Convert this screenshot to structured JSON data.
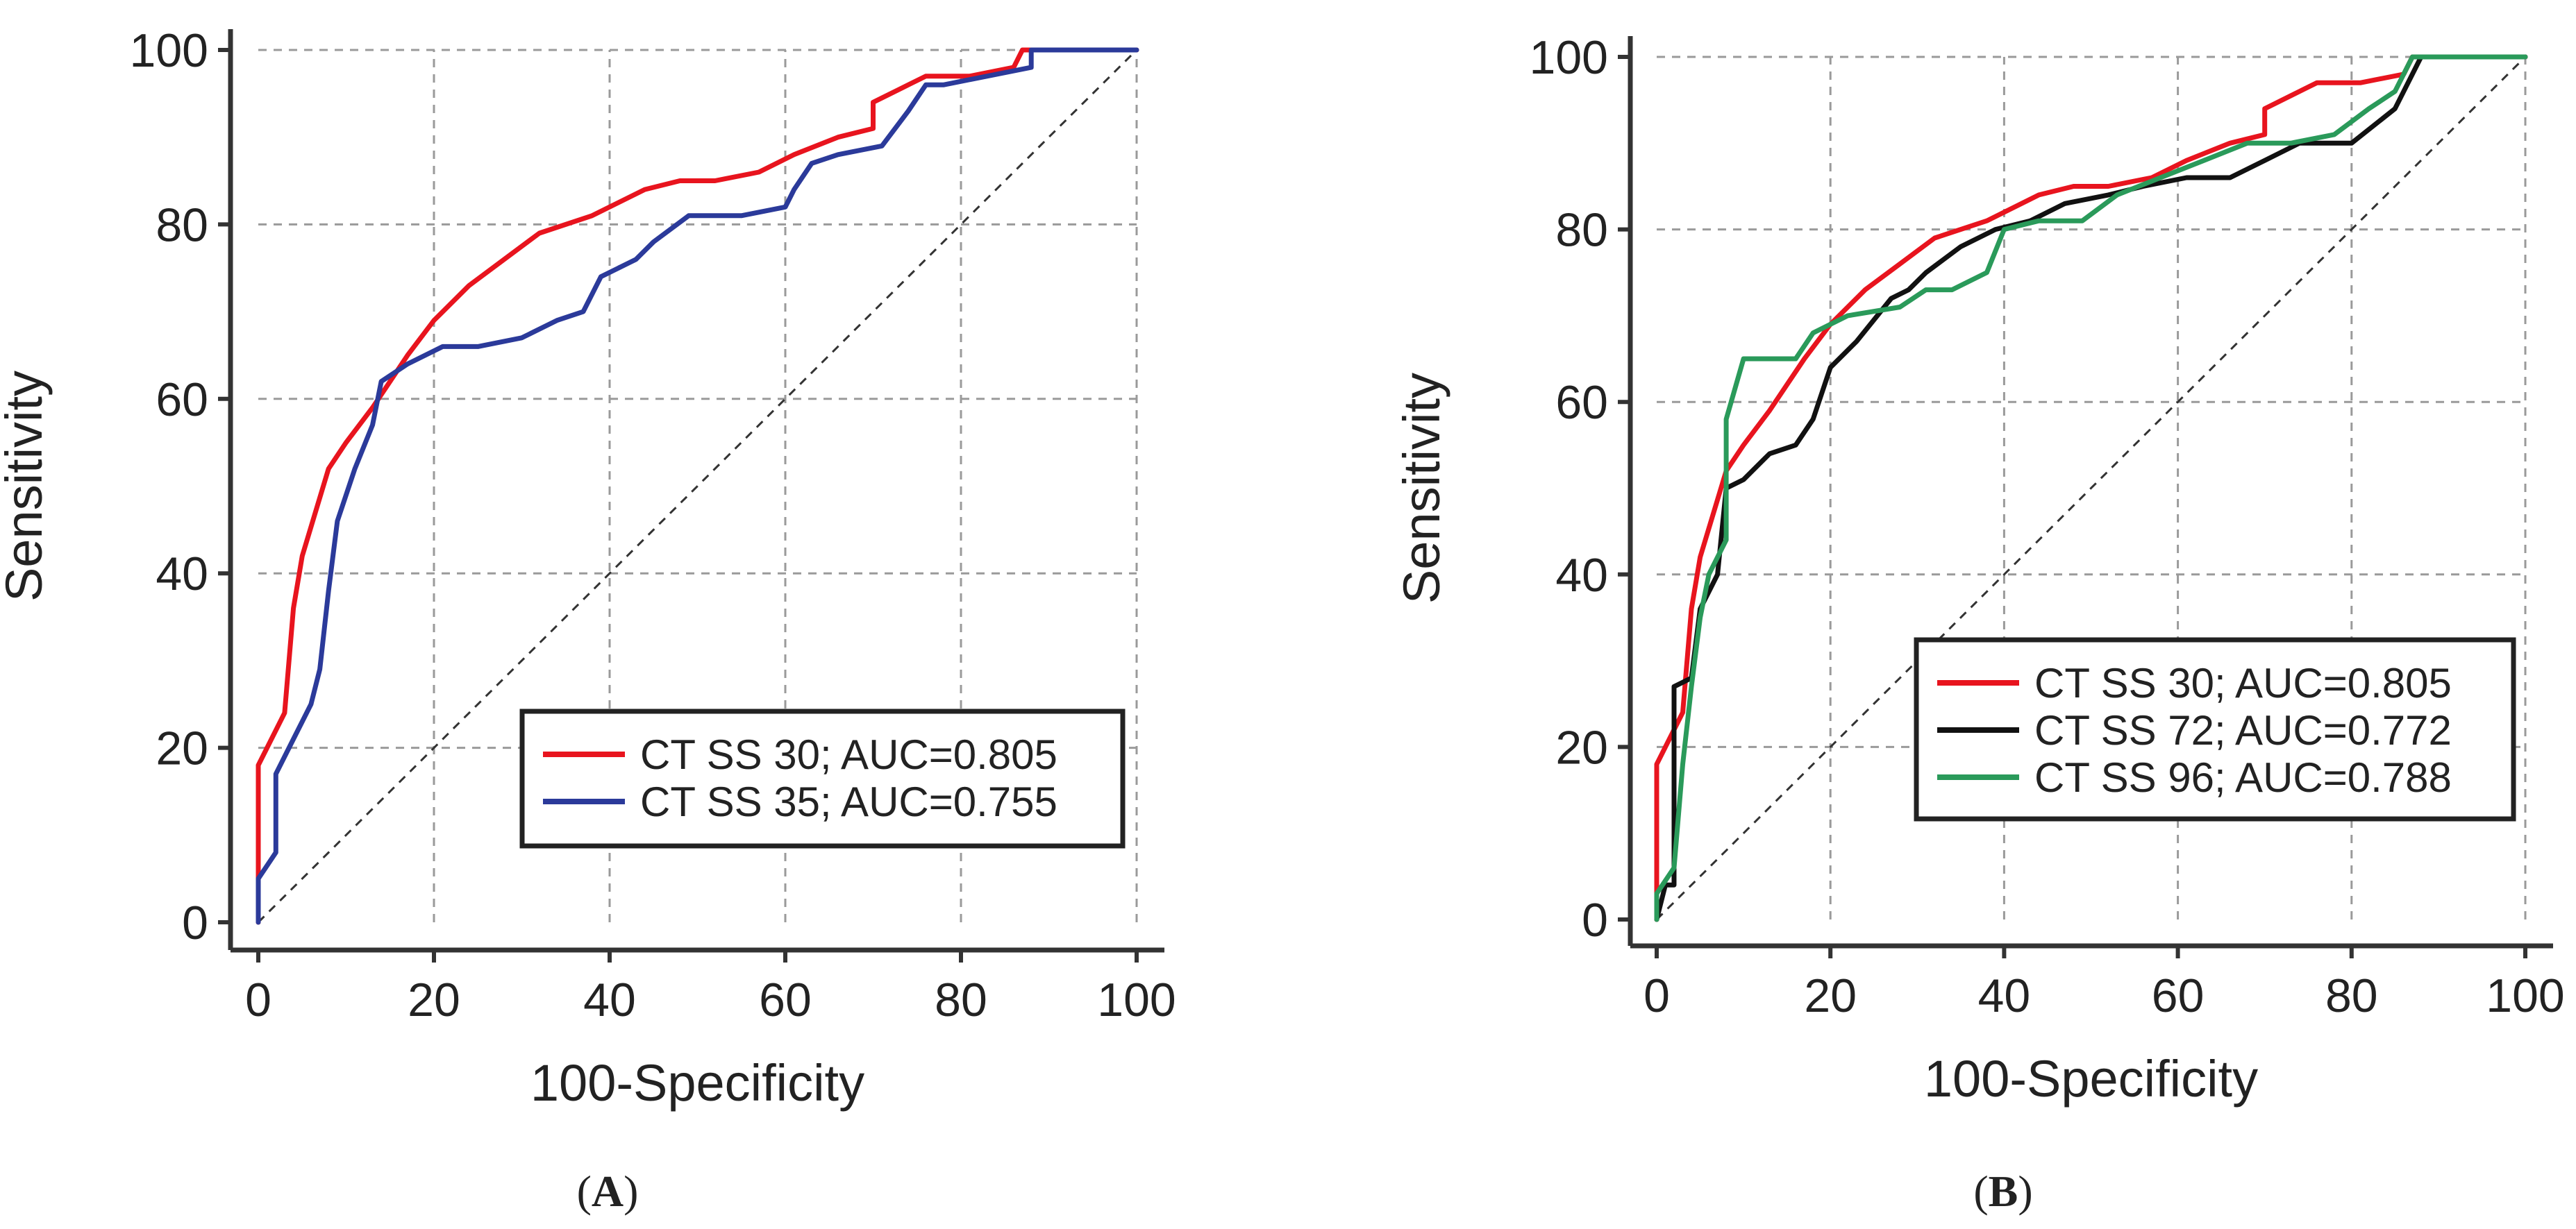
{
  "chart_data": [
    {
      "type": "line",
      "panel_label": "A",
      "xlabel": "100-Specificity",
      "ylabel": "Sensitivity",
      "xlim": [
        0,
        100
      ],
      "ylim": [
        0,
        100
      ],
      "xticks": [
        0,
        20,
        40,
        60,
        80,
        100
      ],
      "yticks": [
        0,
        20,
        40,
        60,
        80,
        100
      ],
      "grid": true,
      "diagonal_reference": true,
      "legend_position": "bottom-right",
      "series": [
        {
          "name": "CT SS 30; AUC=0.805",
          "color": "#e8141e",
          "points": [
            [
              0,
              0
            ],
            [
              0,
              18
            ],
            [
              3,
              24
            ],
            [
              4,
              36
            ],
            [
              5,
              42
            ],
            [
              8,
              52
            ],
            [
              10,
              55
            ],
            [
              13,
              59
            ],
            [
              17,
              65
            ],
            [
              20,
              69
            ],
            [
              24,
              73
            ],
            [
              28,
              76
            ],
            [
              32,
              79
            ],
            [
              38,
              81
            ],
            [
              44,
              84
            ],
            [
              48,
              85
            ],
            [
              52,
              85
            ],
            [
              57,
              86
            ],
            [
              61,
              88
            ],
            [
              66,
              90
            ],
            [
              70,
              91
            ],
            [
              70,
              94
            ],
            [
              74,
              96
            ],
            [
              76,
              97
            ],
            [
              81,
              97
            ],
            [
              86,
              98
            ],
            [
              87,
              100
            ],
            [
              100,
              100
            ]
          ]
        },
        {
          "name": "CT SS 35; AUC=0.755",
          "color": "#2b3a9a",
          "points": [
            [
              0,
              0
            ],
            [
              0,
              5
            ],
            [
              2,
              8
            ],
            [
              2,
              17
            ],
            [
              4,
              21
            ],
            [
              6,
              25
            ],
            [
              7,
              29
            ],
            [
              8,
              38
            ],
            [
              9,
              46
            ],
            [
              11,
              52
            ],
            [
              13,
              57
            ],
            [
              14,
              62
            ],
            [
              17,
              64
            ],
            [
              21,
              66
            ],
            [
              25,
              66
            ],
            [
              30,
              67
            ],
            [
              34,
              69
            ],
            [
              37,
              70
            ],
            [
              39,
              74
            ],
            [
              43,
              76
            ],
            [
              45,
              78
            ],
            [
              49,
              81
            ],
            [
              55,
              81
            ],
            [
              60,
              82
            ],
            [
              61,
              84
            ],
            [
              63,
              87
            ],
            [
              66,
              88
            ],
            [
              71,
              89
            ],
            [
              74,
              93
            ],
            [
              76,
              96
            ],
            [
              78,
              96
            ],
            [
              83,
              97
            ],
            [
              88,
              98
            ],
            [
              88,
              100
            ],
            [
              100,
              100
            ]
          ]
        }
      ]
    },
    {
      "type": "line",
      "panel_label": "B",
      "xlabel": "100-Specificity",
      "ylabel": "Sensitivity",
      "xlim": [
        0,
        100
      ],
      "ylim": [
        0,
        100
      ],
      "xticks": [
        0,
        20,
        40,
        60,
        80,
        100
      ],
      "yticks": [
        0,
        20,
        40,
        60,
        80,
        100
      ],
      "grid": true,
      "diagonal_reference": true,
      "legend_position": "bottom-right",
      "series": [
        {
          "name": "CT SS 30; AUC=0.805",
          "color": "#e8141e",
          "points": [
            [
              0,
              0
            ],
            [
              0,
              18
            ],
            [
              3,
              24
            ],
            [
              4,
              36
            ],
            [
              5,
              42
            ],
            [
              8,
              52
            ],
            [
              10,
              55
            ],
            [
              13,
              59
            ],
            [
              17,
              65
            ],
            [
              20,
              69
            ],
            [
              24,
              73
            ],
            [
              28,
              76
            ],
            [
              32,
              79
            ],
            [
              38,
              81
            ],
            [
              44,
              84
            ],
            [
              48,
              85
            ],
            [
              52,
              85
            ],
            [
              57,
              86
            ],
            [
              61,
              88
            ],
            [
              66,
              90
            ],
            [
              70,
              91
            ],
            [
              70,
              94
            ],
            [
              74,
              96
            ],
            [
              76,
              97
            ],
            [
              81,
              97
            ],
            [
              86,
              98
            ],
            [
              87,
              100
            ],
            [
              100,
              100
            ]
          ]
        },
        {
          "name": "CT SS 72; AUC=0.772",
          "color": "#111111",
          "points": [
            [
              0,
              0
            ],
            [
              1,
              4
            ],
            [
              2,
              4
            ],
            [
              2,
              27
            ],
            [
              4,
              28
            ],
            [
              5,
              36
            ],
            [
              7,
              40
            ],
            [
              8,
              50
            ],
            [
              10,
              51
            ],
            [
              13,
              54
            ],
            [
              16,
              55
            ],
            [
              18,
              58
            ],
            [
              20,
              64
            ],
            [
              23,
              67
            ],
            [
              27,
              72
            ],
            [
              29,
              73
            ],
            [
              31,
              75
            ],
            [
              35,
              78
            ],
            [
              39,
              80
            ],
            [
              43,
              81
            ],
            [
              47,
              83
            ],
            [
              52,
              84
            ],
            [
              56,
              85
            ],
            [
              61,
              86
            ],
            [
              66,
              86
            ],
            [
              70,
              88
            ],
            [
              74,
              90
            ],
            [
              80,
              90
            ],
            [
              85,
              94
            ],
            [
              88,
              100
            ],
            [
              100,
              100
            ]
          ]
        },
        {
          "name": "CT SS 96; AUC=0.788",
          "color": "#2a9a5a",
          "points": [
            [
              0,
              0
            ],
            [
              0,
              3
            ],
            [
              2,
              6
            ],
            [
              3,
              18
            ],
            [
              4,
              27
            ],
            [
              5,
              35
            ],
            [
              6,
              40
            ],
            [
              8,
              44
            ],
            [
              8,
              58
            ],
            [
              10,
              65
            ],
            [
              16,
              65
            ],
            [
              18,
              68
            ],
            [
              22,
              70
            ],
            [
              28,
              71
            ],
            [
              31,
              73
            ],
            [
              34,
              73
            ],
            [
              38,
              75
            ],
            [
              40,
              80
            ],
            [
              44,
              81
            ],
            [
              49,
              81
            ],
            [
              53,
              84
            ],
            [
              58,
              86
            ],
            [
              63,
              88
            ],
            [
              68,
              90
            ],
            [
              73,
              90
            ],
            [
              78,
              91
            ],
            [
              82,
              94
            ],
            [
              85,
              96
            ],
            [
              87,
              100
            ],
            [
              100,
              100
            ]
          ]
        }
      ]
    }
  ]
}
